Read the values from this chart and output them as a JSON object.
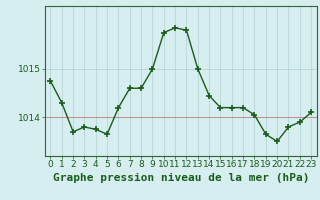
{
  "hours": [
    0,
    1,
    2,
    3,
    4,
    5,
    6,
    7,
    8,
    9,
    10,
    11,
    12,
    13,
    14,
    15,
    16,
    17,
    18,
    19,
    20,
    21,
    22,
    23
  ],
  "pressure": [
    1014.75,
    1014.3,
    1013.7,
    1013.8,
    1013.75,
    1013.65,
    1014.2,
    1014.6,
    1014.6,
    1015.0,
    1015.75,
    1015.85,
    1015.8,
    1015.0,
    1014.45,
    1014.2,
    1014.2,
    1014.2,
    1014.05,
    1013.65,
    1013.5,
    1013.8,
    1013.9,
    1014.1
  ],
  "line_color": "#1a5c1a",
  "marker": "+",
  "marker_size": 4,
  "marker_lw": 1.2,
  "line_width": 1.0,
  "line_style": "-",
  "background_color": "#d6eef0",
  "grid_color": "#b0d0d0",
  "ylabel_ticks": [
    1014,
    1015
  ],
  "xlabel": "Graphe pression niveau de la mer (hPa)",
  "xlabel_fontsize": 8,
  "ylim": [
    1013.2,
    1016.3
  ],
  "xlim": [
    -0.5,
    23.5
  ],
  "hline_color": "#cc6666",
  "hline_y": 1014.0,
  "tick_fontsize": 6.5,
  "spine_color": "#336633"
}
